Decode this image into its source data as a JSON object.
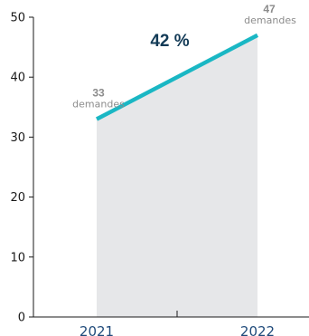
{
  "chart_data": {
    "type": "area",
    "title": "",
    "xlabel": "",
    "ylabel": "",
    "categories": [
      "2021",
      "2022"
    ],
    "series": [
      {
        "values": [
          33,
          47
        ]
      }
    ],
    "data_labels": [
      {
        "value": "33",
        "unit": "demandes"
      },
      {
        "value": "47",
        "unit": "demandes"
      }
    ],
    "annotation": "42 %",
    "ylim": [
      0,
      50
    ],
    "yticks": [
      0,
      10,
      20,
      30,
      40,
      50
    ],
    "grid": false,
    "legend": "none",
    "colors": {
      "line": "#1ab7c4",
      "fill": "#e6e7e9",
      "annotation": "#123a56",
      "data_label": "#8c8c8c",
      "axis_label": "#1f4a7a"
    }
  }
}
